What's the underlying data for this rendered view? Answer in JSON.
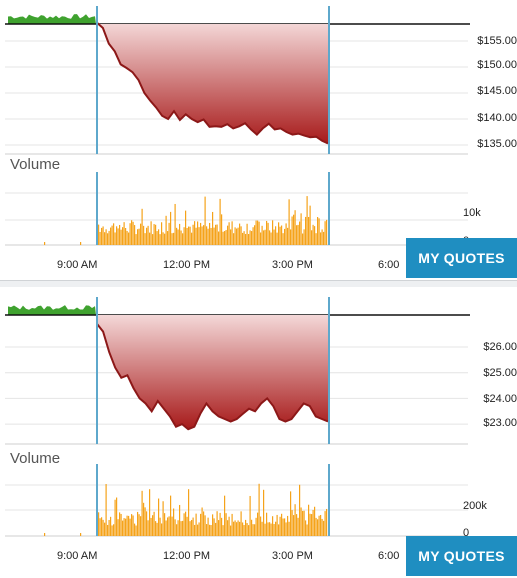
{
  "colors": {
    "pre_market": "#3fa22f",
    "price_line": "#8c1818",
    "fill_top": "#f4d8d8",
    "fill_bottom": "#a71a1a",
    "volume": "#f5a31a",
    "session_marker": "#5ea8cc",
    "button": "#1f8ec1"
  },
  "my_quotes_label": "MY QUOTES",
  "x_axis": [
    "9:00 AM",
    "12:00 PM",
    "3:00 PM",
    "6:00"
  ],
  "panels": [
    {
      "price_ticks": [
        "$155.00",
        "$150.00",
        "$145.00",
        "$140.00",
        "$135.00"
      ],
      "volume_title": "Volume",
      "volume_ticks": [
        "10k",
        "0"
      ]
    },
    {
      "price_ticks": [
        "$26.00",
        "$25.00",
        "$24.00",
        "$23.00"
      ],
      "volume_title": "Volume",
      "volume_ticks": [
        "200k",
        "0"
      ]
    }
  ],
  "chart_data": [
    {
      "type": "line",
      "y_ticks": [
        155,
        150,
        145,
        140,
        135
      ],
      "ylim": [
        133.5,
        157.5
      ],
      "previous_close": 157.8,
      "x_ticks": [
        "9:00 AM",
        "12:00 PM",
        "3:00 PM",
        "6:00"
      ],
      "price": [
        158.5,
        157.5,
        154.5,
        153.0,
        150.5,
        149.8,
        149.0,
        147.5,
        145.0,
        143.5,
        142.2,
        140.6,
        140.0,
        141.5,
        139.8,
        140.9,
        140.0,
        139.4,
        139.9,
        138.5,
        138.6,
        138.5,
        139.0,
        138.2,
        138.6,
        139.2,
        138.0,
        137.0,
        138.2,
        139.1,
        138.0,
        138.2,
        137.5,
        137.0,
        137.2,
        136.8,
        136.5,
        136.6,
        135.8,
        135.3
      ],
      "volume_ylabel_max": 10000
    },
    {
      "type": "line",
      "y_ticks": [
        26,
        25,
        24,
        23
      ],
      "ylim": [
        22.5,
        27.2
      ],
      "previous_close": 26.95,
      "x_ticks": [
        "9:00 AM",
        "12:00 PM",
        "3:00 PM",
        "6:00"
      ],
      "price": [
        26.9,
        26.6,
        25.8,
        25.2,
        24.8,
        24.9,
        24.4,
        24.0,
        23.8,
        23.5,
        23.9,
        23.6,
        23.3,
        22.9,
        23.0,
        22.8,
        22.9,
        23.4,
        23.8,
        23.5,
        23.3,
        23.2,
        23.1,
        23.2,
        23.4,
        23.6,
        23.5,
        23.8,
        24.0,
        23.7,
        23.2,
        23.1,
        23.2,
        23.5,
        23.8,
        23.7,
        23.3,
        23.2,
        23.1
      ],
      "volume_ylabel_max": 200000
    }
  ]
}
